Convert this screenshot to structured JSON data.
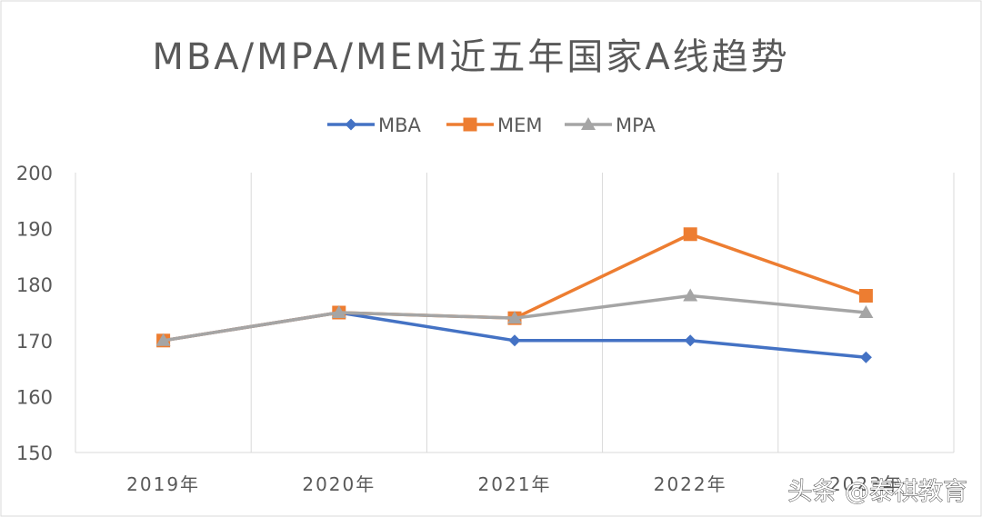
{
  "chart_data": {
    "type": "line",
    "title": "MBA/MPA/MEM近五年国家A线趋势",
    "categories": [
      "2019年",
      "2020年",
      "2021年",
      "2022年",
      "2023年"
    ],
    "series": [
      {
        "name": "MBA",
        "color": "#4472C4",
        "marker": "diamond",
        "values": [
          170,
          175,
          170,
          170,
          167
        ]
      },
      {
        "name": "MEM",
        "color": "#ED7D31",
        "marker": "square",
        "values": [
          170,
          175,
          174,
          189,
          178
        ]
      },
      {
        "name": "MPA",
        "color": "#A5A5A5",
        "marker": "triangle",
        "values": [
          170,
          175,
          174,
          178,
          175
        ]
      }
    ],
    "ylim": [
      150,
      200
    ],
    "yticks": [
      150,
      160,
      170,
      180,
      190,
      200
    ],
    "xlabel": "",
    "ylabel": "",
    "grid": "vertical",
    "legend": "top-center"
  },
  "watermark": "头条 @泰祺教育",
  "colors": {
    "gridline": "#D9D9D9",
    "text": "#595959",
    "border": "#D9D9D9"
  }
}
